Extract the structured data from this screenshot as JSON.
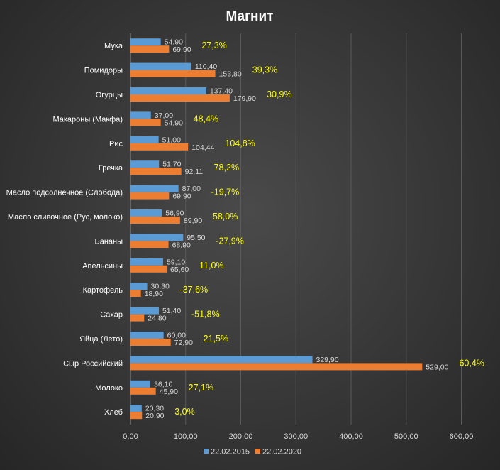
{
  "chart_data": {
    "type": "bar",
    "orientation": "horizontal",
    "title": "Магнит",
    "categories": [
      "Мука",
      "Помидоры",
      "Огурцы",
      "Макароны (Макфа)",
      "Рис",
      "Гречка",
      "Масло подсолнечное (Слобода)",
      "Масло сливочное (Рус, молоко)",
      "Бананы",
      "Апельсины",
      "Картофель",
      "Сахар",
      "Яйца (Лето)",
      "Сыр Российский",
      "Молоко",
      "Хлеб"
    ],
    "series": [
      {
        "name": "22.02.2015",
        "color": "#5b9bd5",
        "values": [
          54.9,
          110.4,
          137.4,
          37.0,
          51.0,
          51.7,
          87.0,
          56.9,
          95.5,
          59.1,
          30.3,
          51.4,
          60.0,
          329.9,
          36.1,
          20.3
        ],
        "labels": [
          "54,90",
          "110,40",
          "137,40",
          "37,00",
          "51,00",
          "51,70",
          "87,00",
          "56,90",
          "95,50",
          "59,10",
          "30,30",
          "51,40",
          "60,00",
          "329,90",
          "36,10",
          "20,30"
        ]
      },
      {
        "name": "22.02.2020",
        "color": "#ed7d31",
        "values": [
          69.9,
          153.8,
          179.9,
          54.9,
          104.44,
          92.11,
          69.9,
          89.9,
          68.9,
          65.6,
          18.9,
          24.8,
          72.9,
          529.0,
          45.9,
          20.9
        ],
        "labels": [
          "69,90",
          "153,80",
          "179,90",
          "54,90",
          "104,44",
          "92,11",
          "69,90",
          "89,90",
          "68,90",
          "65,60",
          "18,90",
          "24,80",
          "72,90",
          "529,00",
          "45,90",
          "20,90"
        ]
      }
    ],
    "annotations": [
      "27,3%",
      "39,3%",
      "30,9%",
      "48,4%",
      "104,8%",
      "78,2%",
      "-19,7%",
      "58,0%",
      "-27,9%",
      "11,0%",
      "-37,6%",
      "-51,8%",
      "21,5%",
      "60,4%",
      "27,1%",
      "3,0%"
    ],
    "annotation_color": "#ffff00",
    "xlim": [
      0,
      600
    ],
    "xticks": [
      0,
      100,
      200,
      300,
      400,
      500,
      600
    ],
    "xtick_labels": [
      "0,00",
      "100,00",
      "200,00",
      "300,00",
      "400,00",
      "500,00",
      "600,00"
    ],
    "grid": true,
    "legend_position": "bottom"
  }
}
